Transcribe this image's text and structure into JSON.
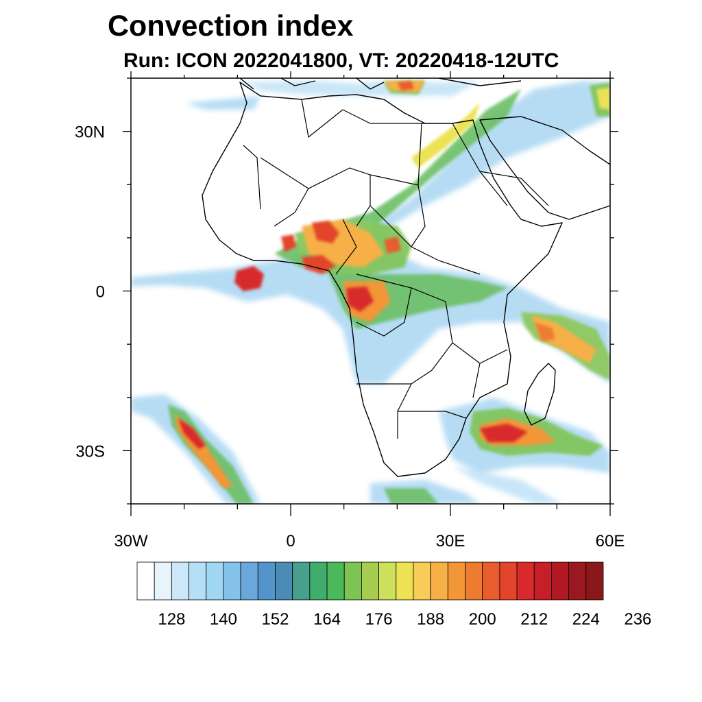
{
  "title": "Convection index",
  "subtitle": "Run: ICON 2022041800,  VT: 20220418-12UTC",
  "map": {
    "lon_range": [
      -30,
      60
    ],
    "lat_range": [
      -40,
      40
    ],
    "lat_ticks": [
      {
        "value": 30,
        "label": "30N"
      },
      {
        "value": 0,
        "label": "0"
      },
      {
        "value": -30,
        "label": "30S"
      }
    ],
    "lon_ticks": [
      {
        "value": -30,
        "label": "30W"
      },
      {
        "value": 0,
        "label": "0"
      },
      {
        "value": 30,
        "label": "30E"
      },
      {
        "value": 60,
        "label": "60E"
      }
    ]
  },
  "colorbar": {
    "colors": [
      "#ffffff",
      "#e8f4fc",
      "#cce8f8",
      "#b6def6",
      "#9ed6f4",
      "#84c2ea",
      "#6aa8dc",
      "#5494cc",
      "#4c8cb4",
      "#46a08c",
      "#3fae6c",
      "#4bb85a",
      "#7ec454",
      "#a6cc50",
      "#cce05c",
      "#ece254",
      "#f8cc58",
      "#f6b046",
      "#f29638",
      "#ee7c30",
      "#e85c2e",
      "#e2442c",
      "#d82a2c",
      "#c81e2a",
      "#b21824",
      "#9c1820",
      "#8a1818"
    ],
    "labels": [
      "128",
      "140",
      "152",
      "164",
      "176",
      "188",
      "200",
      "212",
      "224",
      "236"
    ],
    "label_every": 3
  }
}
